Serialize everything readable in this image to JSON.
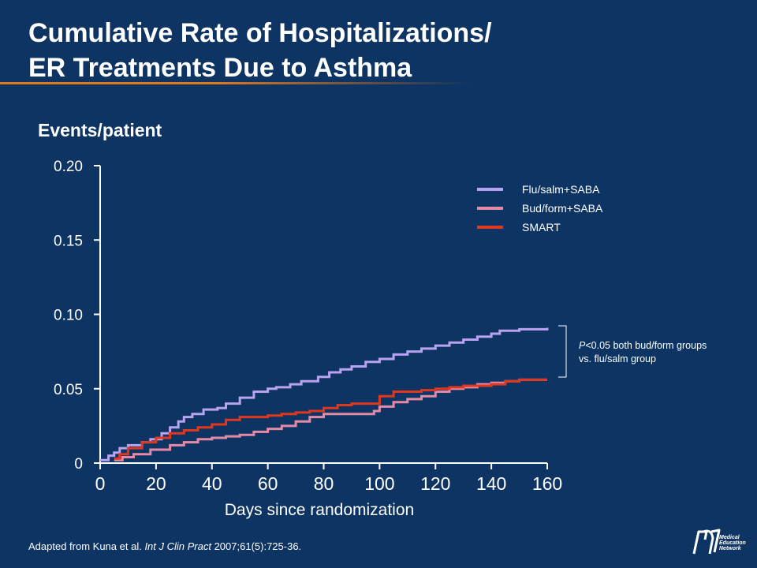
{
  "header": {
    "title_line1": "Cumulative Rate of Hospitalizations/",
    "title_line2": "ER Treatments Due to Asthma"
  },
  "annotation": {
    "p_italic": "P",
    "text_line1": "<0.05 both bud/form groups",
    "text_line2": "vs. flu/salm group"
  },
  "citation": {
    "prefix": "Adapted from Kuna et al. ",
    "journal": "Int J Clin Pract",
    "suffix": " 2007;61(5):725-36."
  },
  "logo": {
    "line1": "Medical",
    "line2": "Education",
    "line3": "Network"
  },
  "colors": {
    "background": "#0d3463",
    "flu_salm": "#b9a2f0",
    "bud_form": "#e58aa6",
    "smart": "#e0381e",
    "accent_rule": "#e07a1f"
  },
  "chart_data": {
    "type": "line",
    "ylabel": "Events/patient",
    "xlabel": "Days since randomization",
    "xlim": [
      0,
      160
    ],
    "ylim": [
      0,
      0.2
    ],
    "x_ticks": [
      0,
      20,
      40,
      60,
      80,
      100,
      120,
      140,
      160
    ],
    "y_ticks": [
      0,
      0.05,
      0.1,
      0.15,
      0.2
    ],
    "y_tick_labels": [
      "0",
      "0.05",
      "0.10",
      "0.15",
      "0.20"
    ],
    "legend_position": "top-right",
    "series": [
      {
        "name": "Flu/salm+SABA",
        "color": "#b9a2f0",
        "x": [
          0,
          3,
          5,
          7,
          10,
          15,
          18,
          22,
          25,
          28,
          30,
          33,
          37,
          42,
          45,
          50,
          55,
          60,
          63,
          68,
          72,
          78,
          82,
          86,
          90,
          95,
          100,
          105,
          110,
          115,
          120,
          125,
          130,
          135,
          140,
          143,
          150,
          155,
          160
        ],
        "y": [
          0.002,
          0.005,
          0.007,
          0.01,
          0.012,
          0.014,
          0.016,
          0.02,
          0.024,
          0.028,
          0.031,
          0.033,
          0.036,
          0.037,
          0.04,
          0.044,
          0.048,
          0.05,
          0.051,
          0.053,
          0.055,
          0.058,
          0.061,
          0.063,
          0.065,
          0.068,
          0.07,
          0.073,
          0.075,
          0.077,
          0.079,
          0.081,
          0.083,
          0.085,
          0.087,
          0.089,
          0.09,
          0.09,
          0.091
        ]
      },
      {
        "name": "Bud/form+SABA",
        "color": "#e58aa6",
        "x": [
          5,
          8,
          12,
          18,
          25,
          30,
          35,
          40,
          45,
          50,
          55,
          60,
          65,
          70,
          75,
          80,
          85,
          90,
          98,
          100,
          105,
          110,
          115,
          120,
          125,
          130,
          135,
          140,
          145,
          150,
          155,
          160
        ],
        "y": [
          0.002,
          0.004,
          0.006,
          0.009,
          0.012,
          0.014,
          0.016,
          0.017,
          0.018,
          0.019,
          0.021,
          0.023,
          0.025,
          0.028,
          0.031,
          0.033,
          0.033,
          0.033,
          0.035,
          0.038,
          0.041,
          0.043,
          0.045,
          0.048,
          0.05,
          0.051,
          0.053,
          0.054,
          0.055,
          0.056,
          0.056,
          0.056
        ]
      },
      {
        "name": "SMART",
        "color": "#e0381e",
        "x": [
          5,
          7,
          10,
          15,
          20,
          25,
          30,
          35,
          40,
          45,
          50,
          55,
          60,
          65,
          70,
          75,
          80,
          85,
          90,
          95,
          100,
          105,
          110,
          115,
          120,
          125,
          130,
          135,
          140,
          145,
          150,
          155,
          160
        ],
        "y": [
          0.003,
          0.006,
          0.01,
          0.014,
          0.017,
          0.02,
          0.022,
          0.024,
          0.026,
          0.029,
          0.031,
          0.031,
          0.032,
          0.033,
          0.034,
          0.035,
          0.037,
          0.039,
          0.04,
          0.04,
          0.045,
          0.048,
          0.048,
          0.049,
          0.05,
          0.051,
          0.052,
          0.052,
          0.053,
          0.055,
          0.056,
          0.056,
          0.056
        ]
      }
    ]
  }
}
